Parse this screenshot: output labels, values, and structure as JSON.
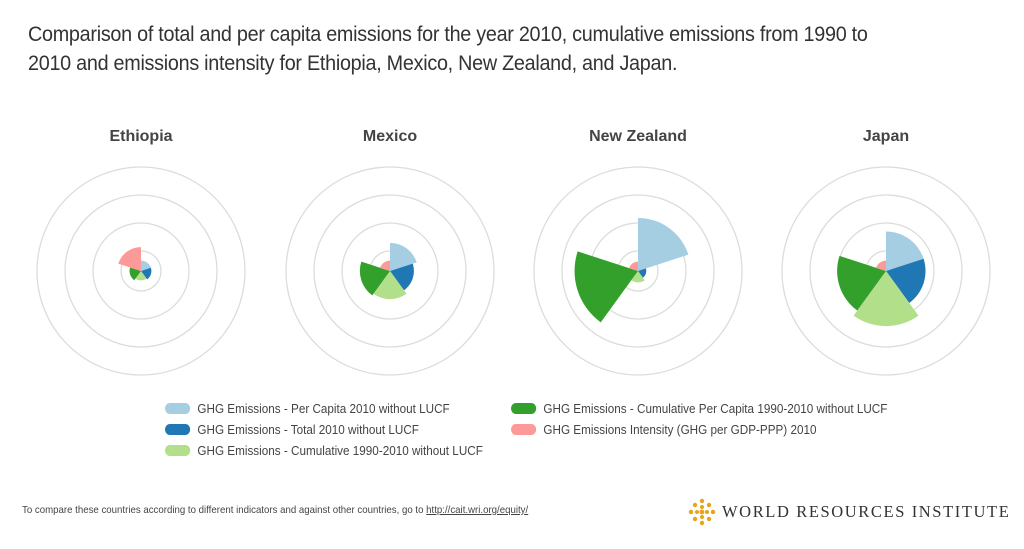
{
  "title": "Comparison of total and per capita emissions for the year 2010, cumulative emissions from 1990 to 2010 and emissions intensity for Ethiopia, Mexico, New Zealand, and Japan.",
  "colors": {
    "per_capita_2010": "#a6cee3",
    "total_2010": "#1f78b4",
    "cumulative_1990_2010": "#b2df8a",
    "cumulative_per_capita": "#33a02c",
    "intensity": "#fb9a99",
    "ring": "#dcdcdc"
  },
  "chart_data": {
    "type": "polar-area",
    "rings": 4,
    "scale_max": 1.0,
    "indicators": [
      "GHG Emissions - Per Capita 2010 without LUCF",
      "GHG Emissions - Total 2010 without LUCF",
      "GHG Emissions - Cumulative 1990-2010 without LUCF",
      "GHG Emissions - Cumulative Per Capita 1990-2010 without LUCF",
      "GHG Emissions Intensity (GHG per GDP-PPP) 2010"
    ],
    "countries": [
      {
        "name": "Ethiopia",
        "values": [
          0.1,
          0.1,
          0.09,
          0.11,
          0.23
        ]
      },
      {
        "name": "Mexico",
        "values": [
          0.27,
          0.23,
          0.27,
          0.29,
          0.1
        ]
      },
      {
        "name": "New Zealand",
        "values": [
          0.51,
          0.08,
          0.11,
          0.61,
          0.09
        ]
      },
      {
        "name": "Japan",
        "values": [
          0.38,
          0.38,
          0.53,
          0.47,
          0.1
        ]
      }
    ]
  },
  "legend": {
    "items": [
      {
        "label": "GHG Emissions - Per Capita 2010 without LUCF",
        "color": "#a6cee3"
      },
      {
        "label": "GHG Emissions - Total 2010 without LUCF",
        "color": "#1f78b4"
      },
      {
        "label": "GHG Emissions - Cumulative 1990-2010 without LUCF",
        "color": "#b2df8a"
      },
      {
        "label": "GHG Emissions - Cumulative Per Capita 1990-2010 without LUCF",
        "color": "#33a02c"
      },
      {
        "label": "GHG Emissions Intensity (GHG per GDP-PPP) 2010",
        "color": "#fb9a99"
      }
    ]
  },
  "footer": {
    "text": "To compare these countries according to different indicators and against other countries, go to",
    "link": "http://cait.wri.org/equity/"
  },
  "brand": {
    "name": "WORLD RESOURCES INSTITUTE",
    "logo_icon": "wri-logo-icon"
  }
}
